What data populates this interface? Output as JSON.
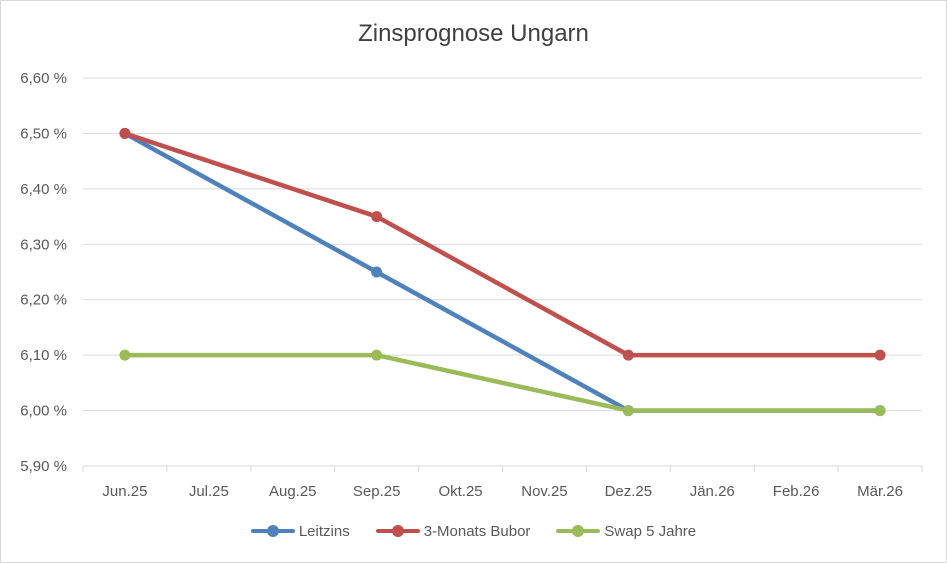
{
  "chart_data": {
    "type": "line",
    "title": "Zinsprognose Ungarn",
    "categories": [
      "Jun.25",
      "Jul.25",
      "Aug.25",
      "Sep.25",
      "Okt.25",
      "Nov.25",
      "Dez.25",
      "Jän.26",
      "Feb.26",
      "Mär.26"
    ],
    "y_ticks": [
      "5,90 %",
      "6,00 %",
      "6,10 %",
      "6,20 %",
      "6,30 %",
      "6,40 %",
      "6,50 %",
      "6,60 %"
    ],
    "ylim": [
      5.9,
      6.6
    ],
    "grid": true,
    "legend_position": "bottom",
    "series": [
      {
        "name": "Leitzins",
        "color": "#4f81bd",
        "values": [
          6.5,
          null,
          null,
          6.25,
          null,
          null,
          6.0,
          null,
          null,
          6.0
        ]
      },
      {
        "name": "3-Monats Bubor",
        "color": "#c0504d",
        "values": [
          6.5,
          null,
          null,
          6.35,
          null,
          null,
          6.1,
          null,
          null,
          6.1
        ]
      },
      {
        "name": "Swap 5 Jahre",
        "color": "#9bbb59",
        "values": [
          6.1,
          null,
          null,
          6.1,
          null,
          null,
          6.0,
          null,
          null,
          6.0
        ]
      }
    ]
  }
}
